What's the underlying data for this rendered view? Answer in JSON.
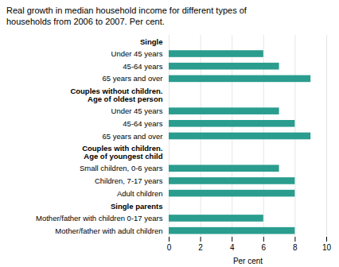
{
  "chart_data": {
    "type": "bar",
    "orientation": "horizontal",
    "title": "Real growth in median household income for different types of\nhouseholds from 2006 to 2007. Per cent.",
    "xlabel": "Per cent",
    "color": "#2a9d8f",
    "xlim": [
      0,
      10
    ],
    "xticks": [
      0,
      2,
      4,
      6,
      8,
      10
    ],
    "grid": true,
    "categories": [
      "Single",
      "Under 45 years",
      "45-64 years",
      "65 years and over",
      "Couples without children.\nAge of oldest person",
      "Under 45 years",
      "45-64 years",
      "65 years and over",
      "Couples with children.\nAge of youngest child",
      "Small children, 0-6 years",
      "Children, 7-17 years",
      "Adult children",
      "Single parents",
      "Mother/father with children 0-17 years",
      "Mother/father with adult children"
    ],
    "values": [
      null,
      6.0,
      7.0,
      9.0,
      null,
      7.0,
      8.0,
      9.0,
      null,
      7.0,
      8.0,
      8.0,
      null,
      6.0,
      8.0
    ]
  }
}
